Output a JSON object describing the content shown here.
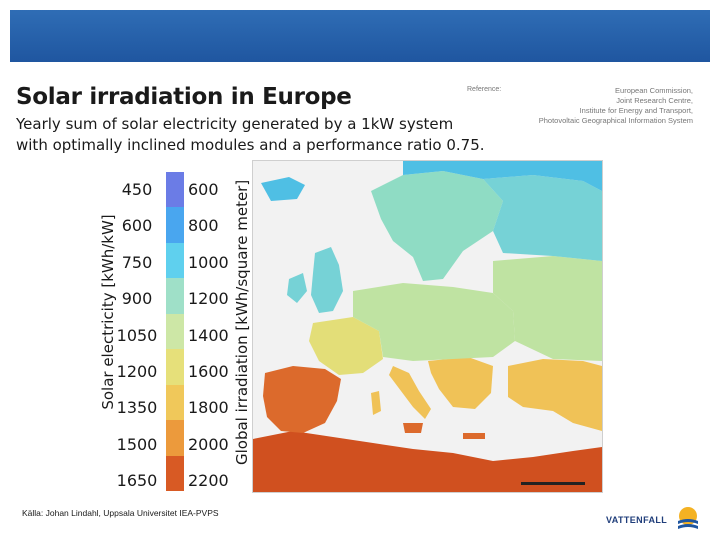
{
  "header": {
    "title": "Solar irradiation in Europe",
    "subtitle": "Yearly sum of solar electricity generated by a 1kW system with optimally inclined modules and a performance ratio 0.75."
  },
  "reference": {
    "label": "Reference:",
    "lines": [
      "European Commission,",
      "Joint Research Centre,",
      "Institute for Energy and Transport,",
      "Photovoltaic Geographical Information System"
    ]
  },
  "legend": {
    "left_title": "Solar electricity [kWh/kW]",
    "right_title": "Global irradiation [kWh/square meter]",
    "left_values": [
      "450",
      "600",
      "750",
      "900",
      "1050",
      "1200",
      "1350",
      "1500",
      "1650"
    ],
    "right_values": [
      "600",
      "800",
      "1000",
      "1200",
      "1400",
      "1600",
      "1800",
      "2000",
      "2200"
    ],
    "colors": [
      "#6b7ce6",
      "#49a6ef",
      "#5fd0ee",
      "#9fe0c8",
      "#cde7a6",
      "#e6e07a",
      "#f0c85a",
      "#ec9a3c",
      "#d85a24"
    ]
  },
  "map": {
    "sea_color": "#f2f2f2",
    "land_colors": {
      "arctic": "#4fbfe4",
      "north": "#76d2d6",
      "scandinavia": "#8fdcc4",
      "central": "#bfe3a2",
      "south_central": "#e3de78",
      "mediterranean": "#f0c257",
      "iberia_south": "#dc6a2c",
      "north_africa": "#d0501f"
    }
  },
  "footer": {
    "source": "Källa: Johan Lindahl, Uppsala Universitet IEA-PVPS",
    "brand": "VATTENFALL",
    "brand_color": "#1f3d7a",
    "sun_color": "#f4b223"
  }
}
